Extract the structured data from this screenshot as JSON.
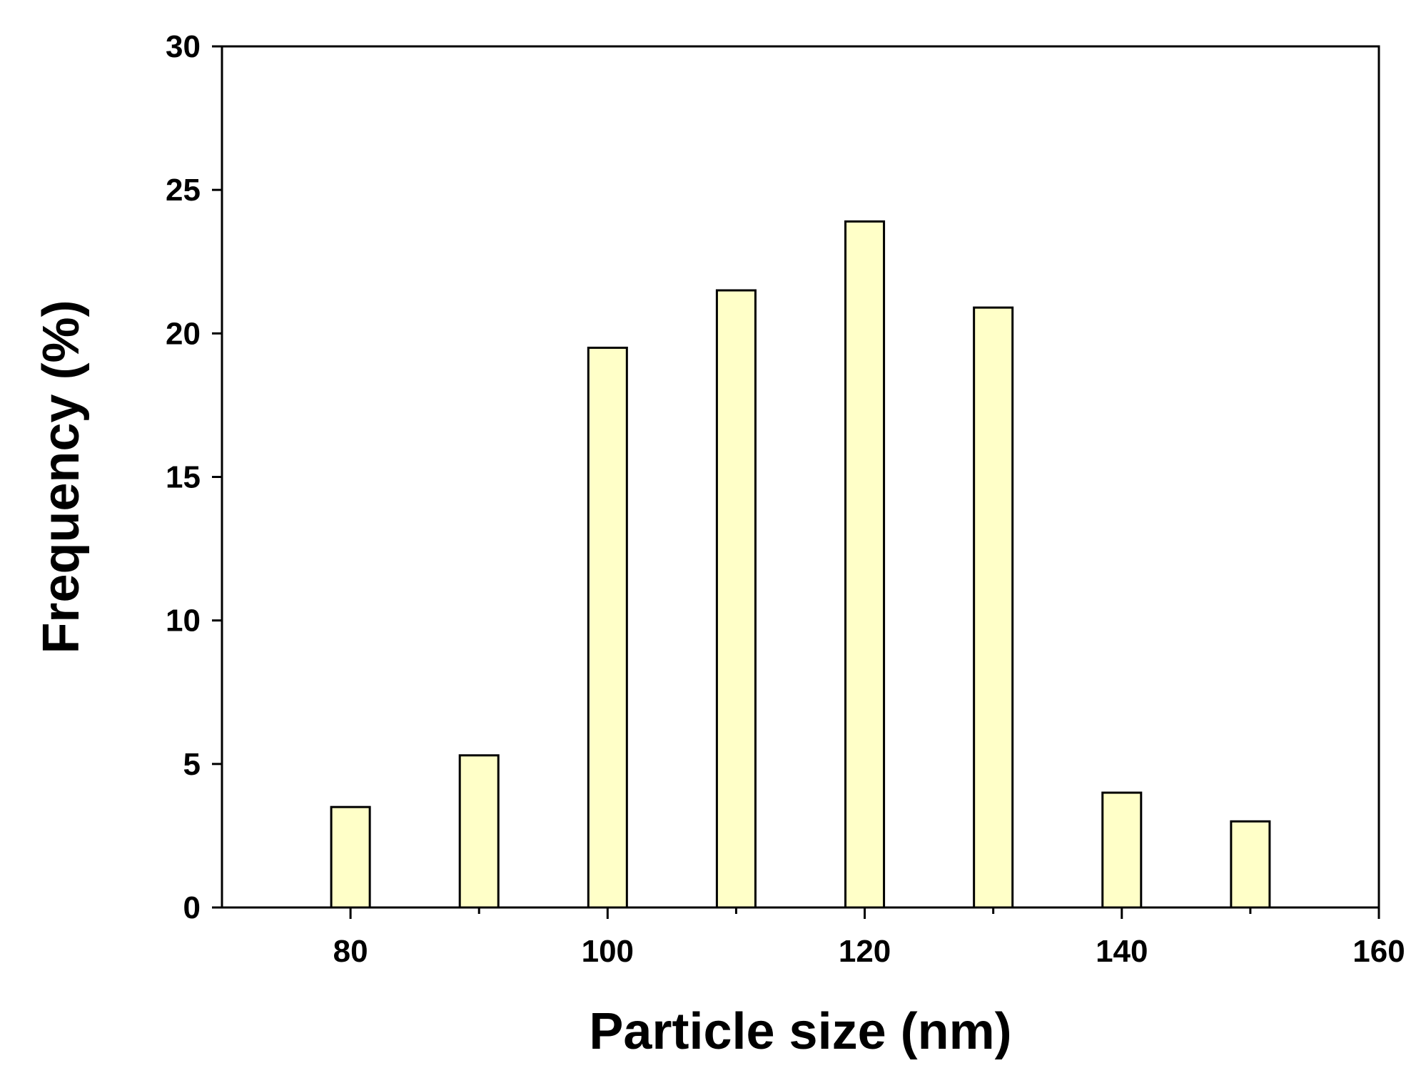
{
  "chart_data": {
    "type": "bar",
    "title": "",
    "xlabel": "Particle size (nm)",
    "ylabel": "Frequency (%)",
    "xlim": [
      70,
      160
    ],
    "ylim": [
      0,
      30
    ],
    "x_ticks": [
      "80",
      "100",
      "120",
      "140",
      "160"
    ],
    "x_minor_ticks": [
      90,
      110,
      130,
      150
    ],
    "y_ticks": [
      "0",
      "5",
      "10",
      "15",
      "20",
      "25",
      "30"
    ],
    "bar_width": 3,
    "grid": false,
    "legend": "none",
    "x": [
      80,
      90,
      100,
      110,
      120,
      130,
      140,
      150
    ],
    "values": [
      3.5,
      5.3,
      19.5,
      21.5,
      23.9,
      20.9,
      4.0,
      3.0
    ],
    "colors": {
      "bar_fill": "#ffffc8",
      "bar_stroke": "#000000",
      "axis": "#000000"
    }
  }
}
